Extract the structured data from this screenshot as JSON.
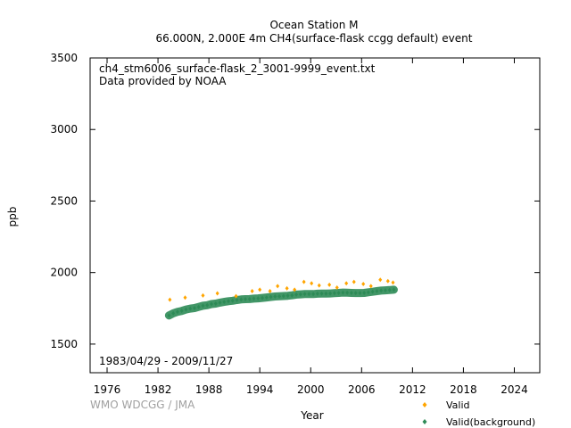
{
  "chart_data": {
    "type": "scatter",
    "title": "Ocean Station M",
    "subtitle": "66.000N, 2.000E 4m    CH4(surface-flask ccgg default) event",
    "xlabel": "Year",
    "ylabel": "ppb",
    "xlim": [
      1974,
      2027
    ],
    "ylim": [
      1300,
      3500
    ],
    "x_ticks": [
      "1976",
      "1982",
      "1988",
      "1994",
      "2000",
      "2006",
      "2012",
      "2018",
      "2024"
    ],
    "y_ticks": [
      "1500",
      "2000",
      "2500",
      "3000",
      "3500"
    ],
    "annotations": {
      "file": "ch4_stm6006_surface-flask_2_3001-9999_event.txt",
      "provider": "Data provided by NOAA",
      "period": "1983/04/29 - 2009/11/27",
      "credit": "WMO WDCGG / JMA"
    },
    "grid": false,
    "legend_position": "bottom-right",
    "series": [
      {
        "name": "Valid",
        "color": "#ffa500",
        "marker": "diamond",
        "x": [
          1983.4,
          1985.2,
          1987.3,
          1989.0,
          1991.2,
          1993.1,
          1994.0,
          1995.2,
          1996.1,
          1997.2,
          1998.1,
          1999.2,
          2000.1,
          2001.0,
          2002.2,
          2003.1,
          2004.2,
          2005.1,
          2006.2,
          2007.1,
          2008.2,
          2009.1,
          2009.7
        ],
        "values": [
          1810,
          1825,
          1840,
          1855,
          1835,
          1870,
          1880,
          1870,
          1905,
          1890,
          1880,
          1935,
          1925,
          1910,
          1915,
          1895,
          1925,
          1935,
          1920,
          1905,
          1950,
          1940,
          1930
        ]
      },
      {
        "name": "Valid(background)",
        "color": "#2e8b57",
        "marker": "diamond",
        "x": [
          1983.3,
          1983.8,
          1984.3,
          1984.8,
          1985.3,
          1985.8,
          1986.3,
          1986.8,
          1987.3,
          1987.8,
          1988.3,
          1988.8,
          1989.3,
          1989.8,
          1990.3,
          1990.8,
          1991.3,
          1991.8,
          1992.3,
          1992.8,
          1993.3,
          1993.8,
          1994.3,
          1994.8,
          1995.3,
          1995.8,
          1996.3,
          1996.8,
          1997.3,
          1997.8,
          1998.3,
          1998.8,
          1999.3,
          1999.8,
          2000.3,
          2000.8,
          2001.3,
          2001.8,
          2002.3,
          2002.8,
          2003.3,
          2003.8,
          2004.3,
          2004.8,
          2005.3,
          2005.8,
          2006.3,
          2006.8,
          2007.3,
          2007.8,
          2008.3,
          2008.8,
          2009.3,
          2009.8
        ],
        "values": [
          1700,
          1715,
          1725,
          1732,
          1742,
          1748,
          1752,
          1760,
          1768,
          1772,
          1780,
          1783,
          1790,
          1795,
          1800,
          1803,
          1808,
          1812,
          1814,
          1815,
          1818,
          1820,
          1823,
          1826,
          1830,
          1833,
          1834,
          1836,
          1838,
          1841,
          1846,
          1848,
          1850,
          1850,
          1850,
          1852,
          1853,
          1853,
          1854,
          1856,
          1858,
          1860,
          1859,
          1858,
          1857,
          1857,
          1858,
          1862,
          1866,
          1870,
          1874,
          1876,
          1878,
          1880
        ]
      }
    ]
  }
}
